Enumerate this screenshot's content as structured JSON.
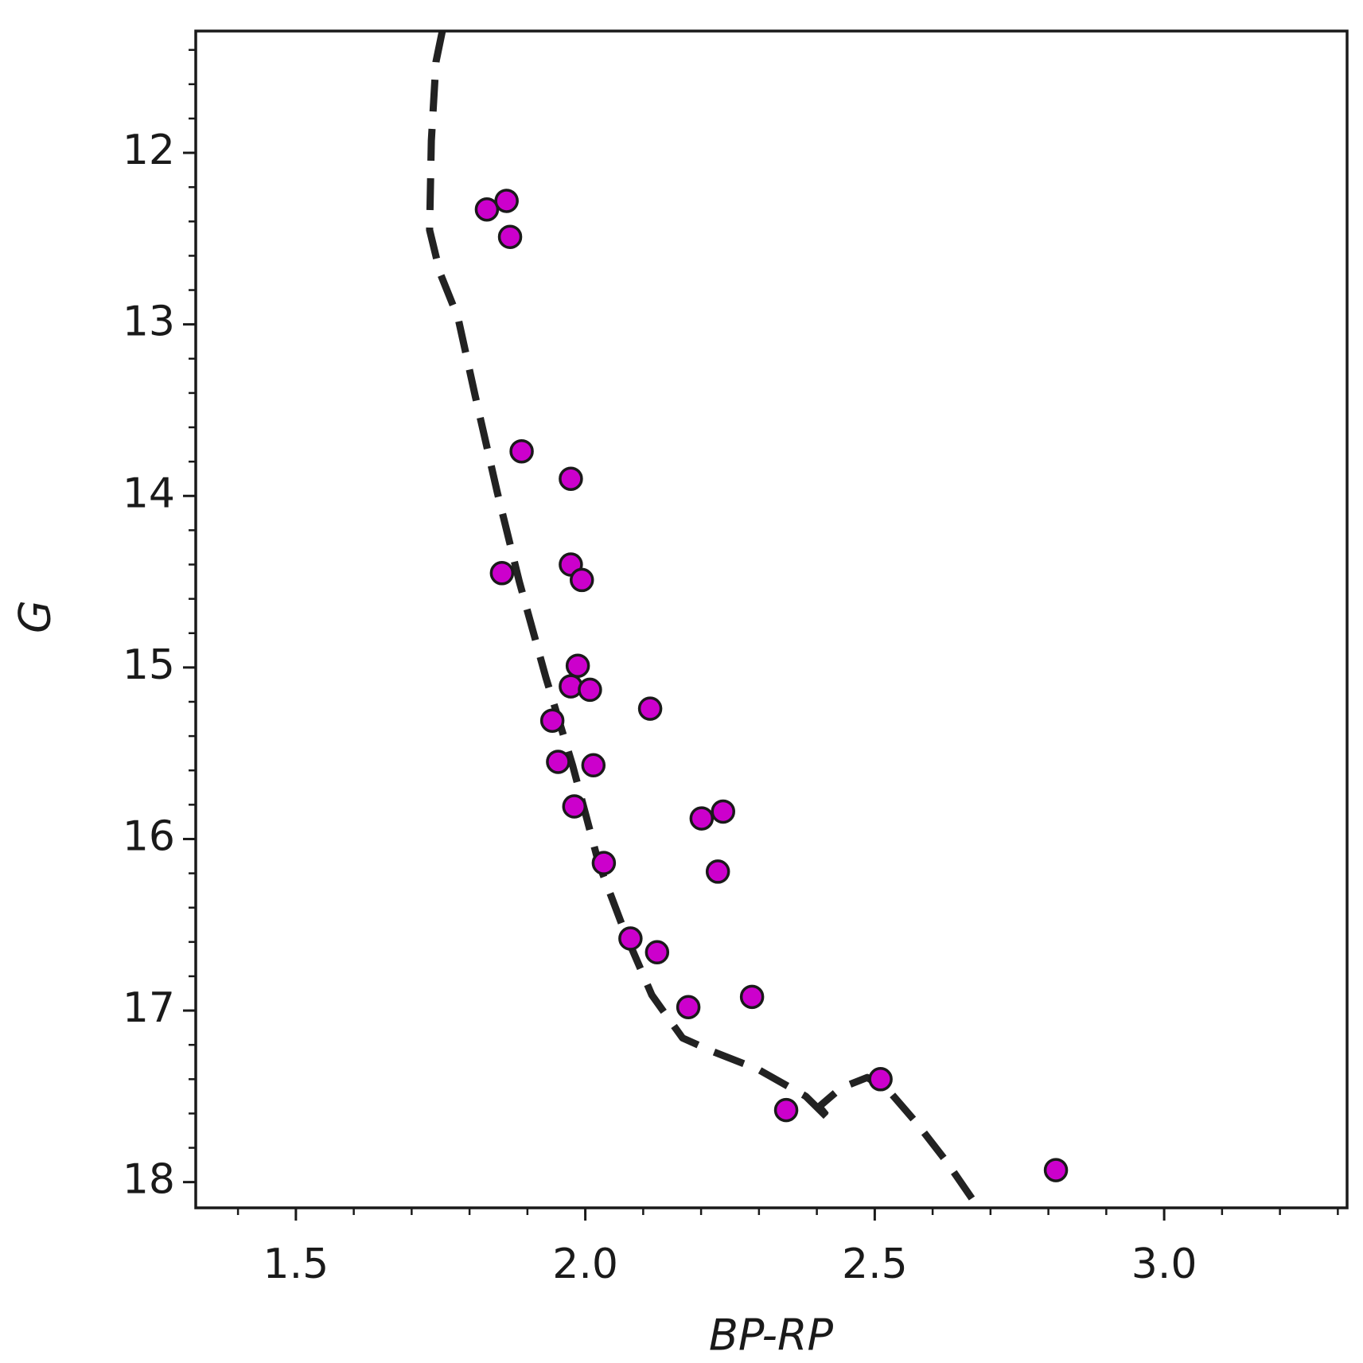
{
  "chart_data": {
    "type": "scatter",
    "xlabel": "BP-RP",
    "ylabel": "G",
    "xlim": [
      1.327,
      3.316
    ],
    "ylim": [
      18.15,
      11.29
    ],
    "xticks": [
      1.5,
      {
        "value": 2.0,
        "label": "2.0"
      },
      2.5,
      {
        "value": 3.0,
        "label": "3.0"
      }
    ],
    "yticks": [
      12,
      13,
      14,
      15,
      16,
      17,
      18
    ],
    "xminor": [
      1.4,
      1.5,
      1.6,
      1.7,
      1.8,
      1.9,
      2.0,
      2.1,
      2.2,
      2.3,
      2.4,
      2.5,
      2.6,
      2.7,
      2.8,
      2.9,
      3.0,
      3.1,
      3.2,
      3.3
    ],
    "yminor": [
      11.4,
      11.6,
      11.8,
      12.0,
      12.2,
      12.4,
      12.6,
      12.8,
      13.0,
      13.2,
      13.4,
      13.6,
      13.8,
      14.0,
      14.2,
      14.4,
      14.6,
      14.8,
      15.0,
      15.2,
      15.4,
      15.6,
      15.8,
      16.0,
      16.2,
      16.4,
      16.6,
      16.8,
      17.0,
      17.2,
      17.4,
      17.6,
      17.8,
      18.0
    ],
    "series": [
      {
        "type": "line",
        "color": "#222222",
        "dashed": true,
        "x": [
          1.753,
          1.742,
          1.734,
          1.731,
          1.749,
          1.78,
          1.81,
          1.848,
          1.886,
          1.932,
          1.978,
          2.023,
          2.069,
          2.115,
          2.168,
          2.221,
          2.297,
          2.381,
          2.426,
          2.404,
          2.442,
          2.487,
          2.525,
          2.571,
          2.624,
          2.677
        ],
        "values": [
          11.29,
          11.47,
          11.93,
          12.45,
          12.7,
          12.96,
          13.42,
          13.98,
          14.5,
          15.06,
          15.57,
          16.14,
          16.55,
          16.91,
          17.16,
          17.24,
          17.34,
          17.5,
          17.65,
          17.56,
          17.45,
          17.39,
          17.47,
          17.65,
          17.88,
          18.14
        ]
      },
      {
        "type": "scatter",
        "color": "#cc00cc",
        "edgecolor": "#1a1a1a",
        "x": [
          1.83,
          1.864,
          1.87,
          1.89,
          1.975,
          1.856,
          1.975,
          1.994,
          1.987,
          1.975,
          2.008,
          2.112,
          1.943,
          1.953,
          2.014,
          1.981,
          2.201,
          2.238,
          2.032,
          2.229,
          2.078,
          2.124,
          2.178,
          2.288,
          2.51,
          2.347,
          2.813
        ],
        "values": [
          12.33,
          12.28,
          12.49,
          13.74,
          13.9,
          14.45,
          14.4,
          14.49,
          14.99,
          15.11,
          15.13,
          15.24,
          15.31,
          15.55,
          15.57,
          15.81,
          15.88,
          15.84,
          16.14,
          16.19,
          16.58,
          16.66,
          16.98,
          16.92,
          17.4,
          17.58,
          17.93
        ]
      }
    ]
  }
}
